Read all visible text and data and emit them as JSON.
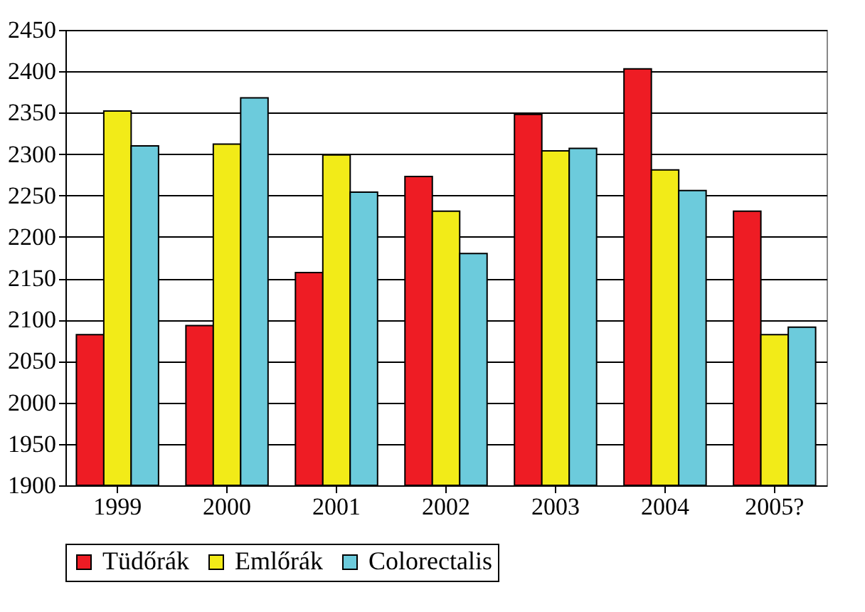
{
  "chart_data": {
    "type": "bar",
    "categories": [
      "1999",
      "2000",
      "2001",
      "2002",
      "2003",
      "2004",
      "2005?"
    ],
    "series": [
      {
        "name": "Tüdőrák",
        "color": "#ee1c24",
        "values": [
          2082,
          2093,
          2157,
          2273,
          2348,
          2403,
          2231
        ]
      },
      {
        "name": "Emlőrák",
        "color": "#f2eb18",
        "values": [
          2352,
          2312,
          2299,
          2231,
          2304,
          2281,
          2082
        ]
      },
      {
        "name": "Colorectalis",
        "color": "#6ccbdc",
        "values": [
          2310,
          2368,
          2254,
          2180,
          2307,
          2256,
          2091
        ]
      }
    ],
    "ylim": [
      1900,
      2450
    ],
    "yticks": [
      1900,
      1950,
      2000,
      2050,
      2100,
      2150,
      2200,
      2250,
      2300,
      2350,
      2400,
      2450
    ],
    "grid": "y",
    "legend": "bottom"
  }
}
